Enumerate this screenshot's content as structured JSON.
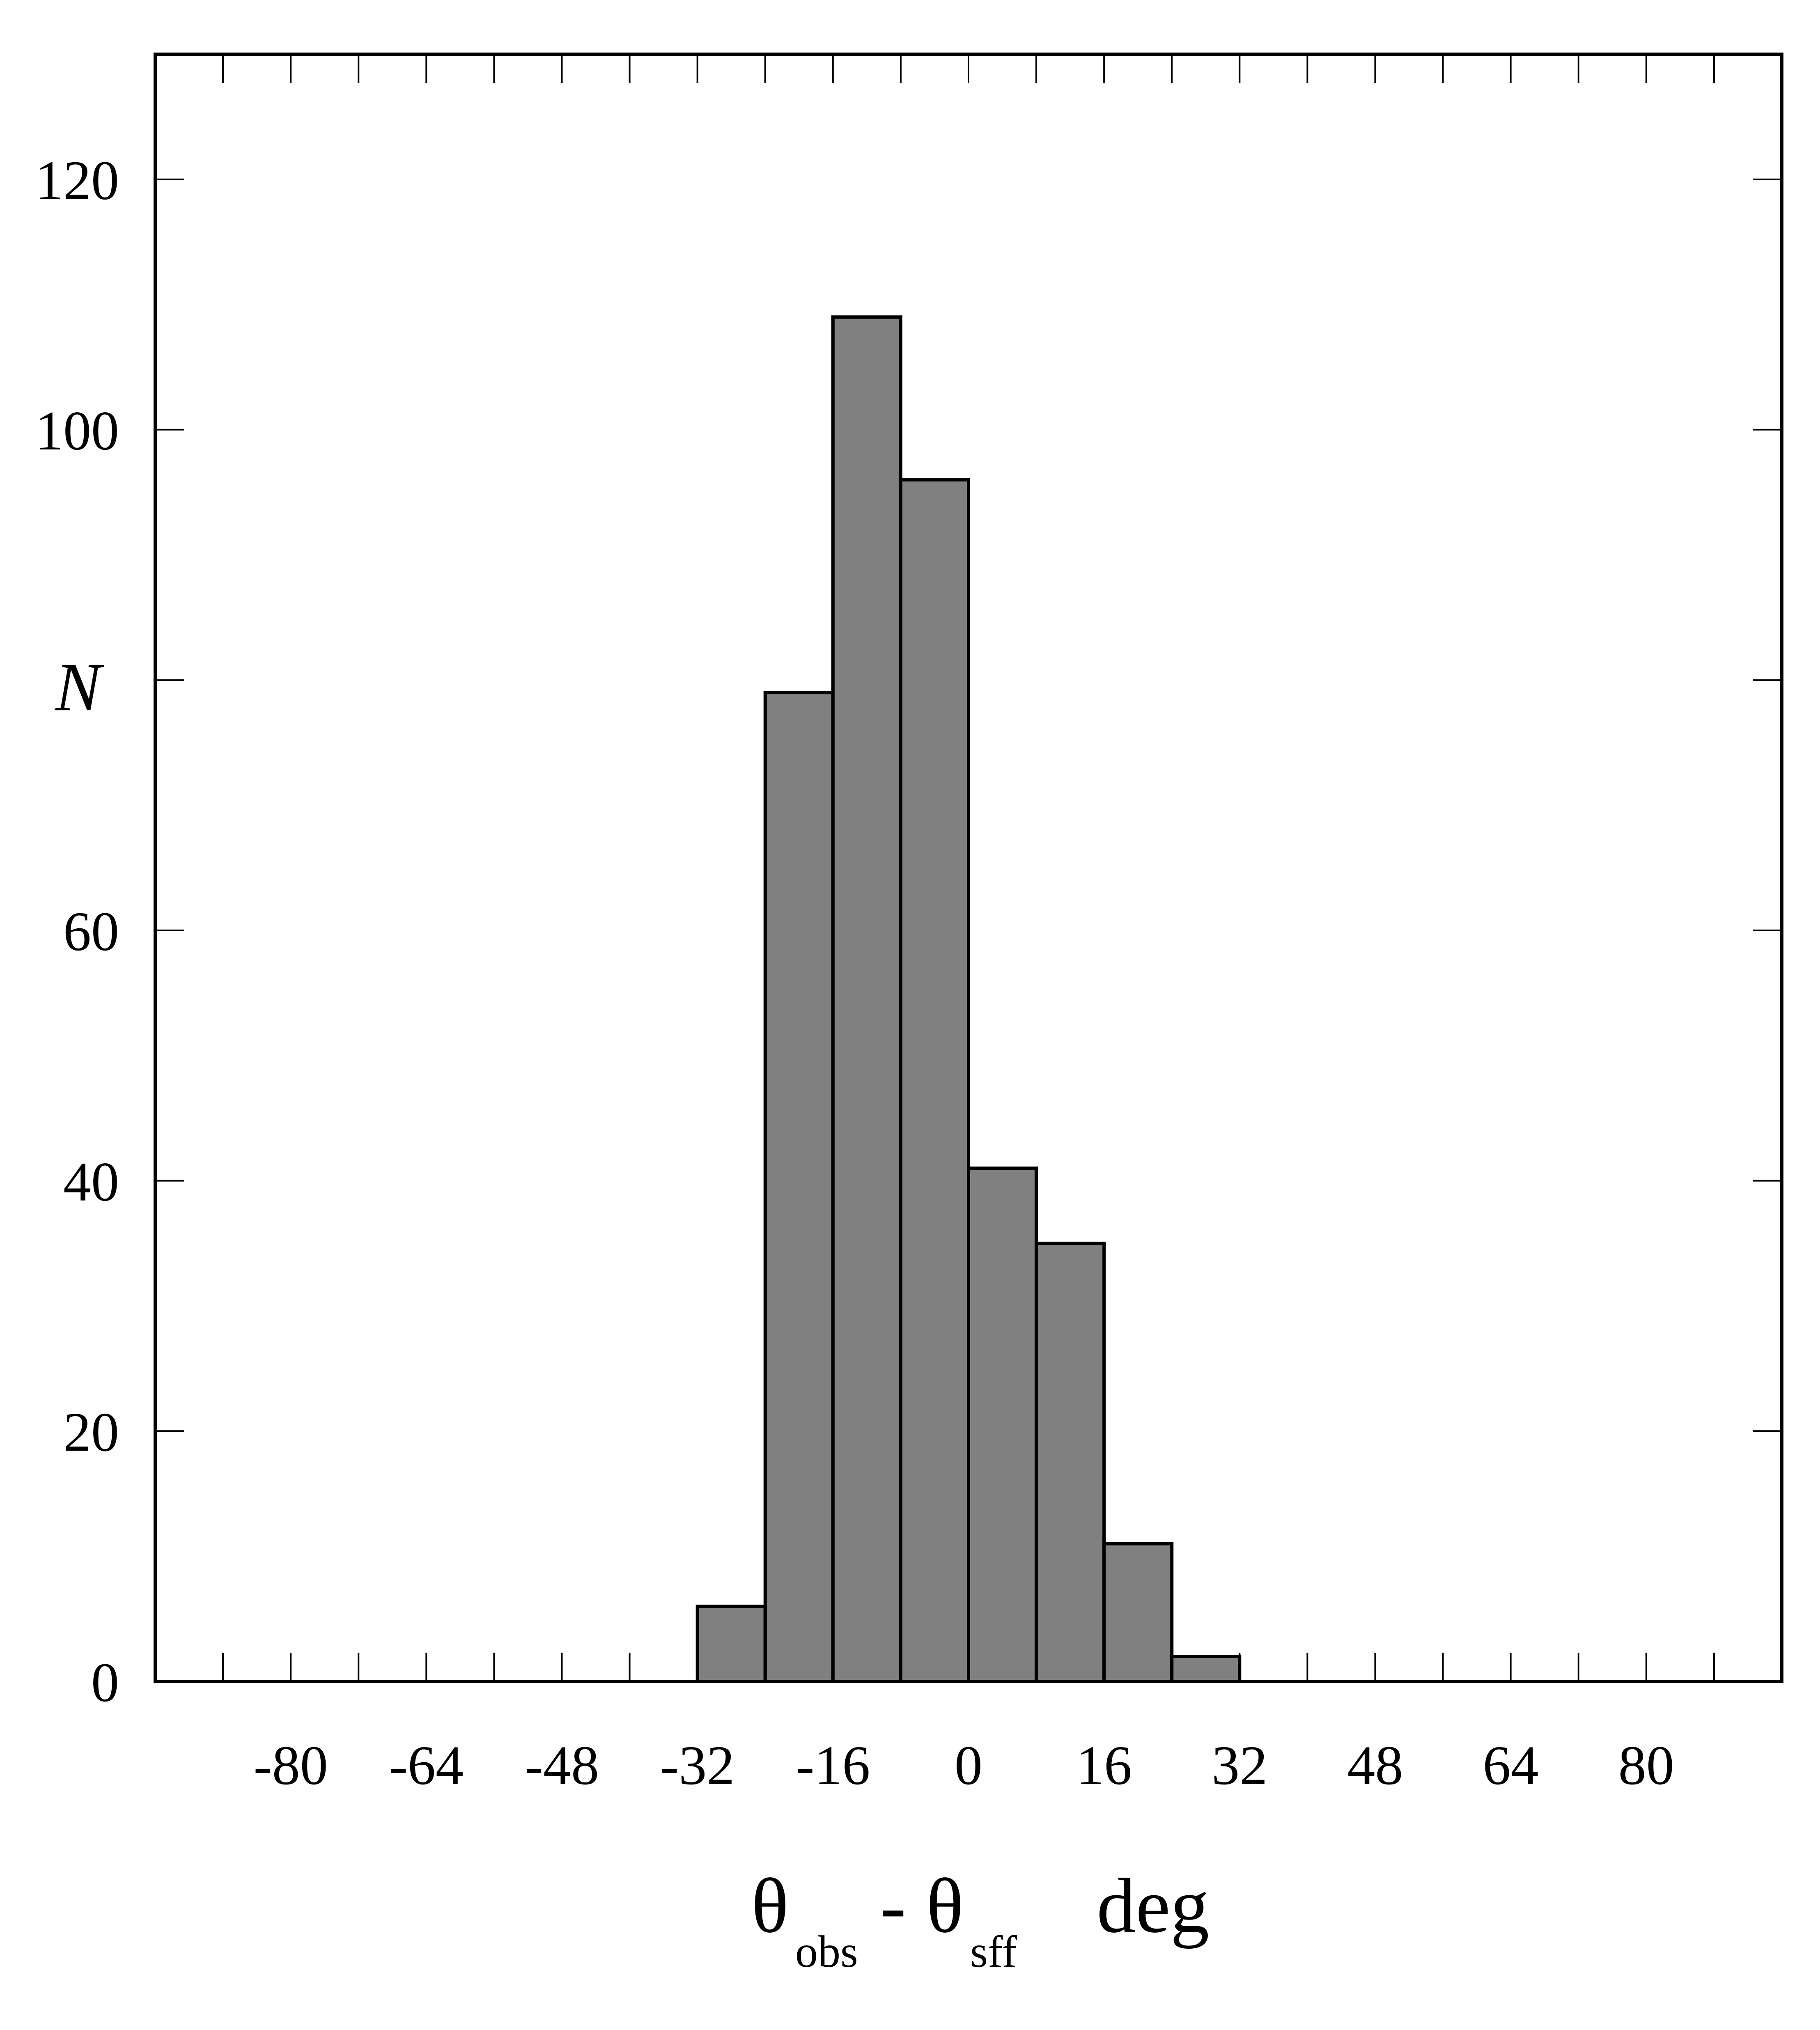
{
  "chart_data": {
    "type": "bar",
    "ylabel": "N",
    "xlabel": {
      "theta1": "θ",
      "sub1": "obs",
      "dash": "-",
      "theta2": "θ",
      "sub2": "sff",
      "unit": "deg"
    },
    "xlim": [
      -96,
      96
    ],
    "ylim": [
      0,
      130
    ],
    "x_ticks": [
      -80,
      -64,
      -48,
      -32,
      -16,
      0,
      16,
      32,
      48,
      64,
      80
    ],
    "y_ticks": [
      0,
      20,
      40,
      60,
      80,
      100,
      120
    ],
    "y_tick_labels": [
      "0",
      "20",
      "40",
      "60",
      "",
      "100",
      "120"
    ],
    "bin_width": 8,
    "bins": [
      {
        "x0": -32,
        "x1": -24,
        "value": 6
      },
      {
        "x0": -24,
        "x1": -16,
        "value": 79
      },
      {
        "x0": -16,
        "x1": -8,
        "value": 109
      },
      {
        "x0": -8,
        "x1": 0,
        "value": 96
      },
      {
        "x0": 0,
        "x1": 8,
        "value": 41
      },
      {
        "x0": 8,
        "x1": 16,
        "value": 35
      },
      {
        "x0": 16,
        "x1": 24,
        "value": 11
      },
      {
        "x0": 24,
        "x1": 32,
        "value": 2
      }
    ],
    "bar_color": "#808080",
    "edge_color": "#000000",
    "grid": false,
    "legend": "none"
  }
}
